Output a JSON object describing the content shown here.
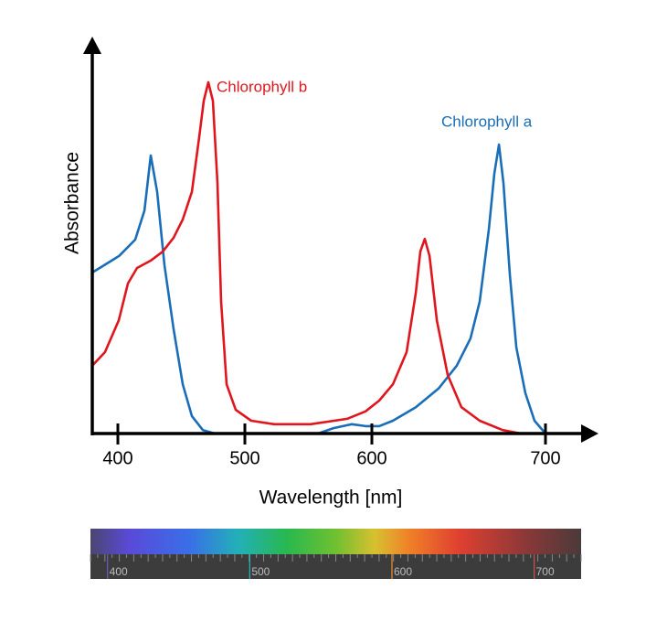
{
  "chart_data": {
    "type": "line",
    "xlabel": "Wavelength [nm]",
    "ylabel": "Absorbance",
    "xlim": [
      380,
      723
    ],
    "ylim": [
      0,
      100
    ],
    "xticks": [
      400,
      500,
      600,
      700
    ],
    "series": [
      {
        "name": "Chlorophyll a",
        "color": "#1a6eb8",
        "x": [
          380,
          401,
          413.7,
          420.9,
          425.9,
          430.9,
          436.7,
          443.9,
          451.1,
          458.3,
          466.9,
          476.3,
          520,
          557.6,
          569.8,
          584.2,
          595,
          604.2,
          612.1,
          625.3,
          638.4,
          648.9,
          656.8,
          662.1,
          667.4,
          670.5,
          673.2,
          675.8,
          679.5,
          683.2,
          688.4,
          693.7,
          700
        ],
        "values": [
          41.5,
          45.8,
          50.0,
          57.5,
          71.7,
          62.3,
          43.4,
          26.9,
          12.7,
          4.5,
          0.9,
          0,
          null,
          0,
          1.4,
          2.4,
          1.9,
          1.9,
          3.3,
          6.8,
          11.6,
          17.5,
          24.5,
          34.0,
          52.8,
          67.0,
          74.5,
          64.6,
          41.0,
          22.2,
          10.4,
          3.3,
          0
        ]
      },
      {
        "name": "Chlorophyll b",
        "color": "#e0161e",
        "x": [
          380,
          389.9,
          400.7,
          407.9,
          415.1,
          425.9,
          435.3,
          443.9,
          451.1,
          458.3,
          464.0,
          467.6,
          471.2,
          474.8,
          478.4,
          481.3,
          485.6,
          492.8,
          505.0,
          523.0,
          551.8,
          580.6,
          595.0,
          604.2,
          612.1,
          620.0,
          625.3,
          627.9,
          630.5,
          633.2,
          637.4,
          643.7,
          651.6,
          662.1,
          675.3,
          685.8
        ],
        "values": [
          17.5,
          21.0,
          29.2,
          38.7,
          42.7,
          44.6,
          46.9,
          50.5,
          55.2,
          62.3,
          76.4,
          85.8,
          90.6,
          85.8,
          64.6,
          34.0,
          12.7,
          6.1,
          3.3,
          2.4,
          2.4,
          3.8,
          5.7,
          8.5,
          12.7,
          21.0,
          36.3,
          46.9,
          50.2,
          45.8,
          29.2,
          15.1,
          6.8,
          3.3,
          0.9,
          0
        ]
      }
    ]
  },
  "spectrum_scale": {
    "xlim": [
      388,
      733
    ],
    "xticks": [
      400,
      500,
      600,
      700
    ]
  }
}
